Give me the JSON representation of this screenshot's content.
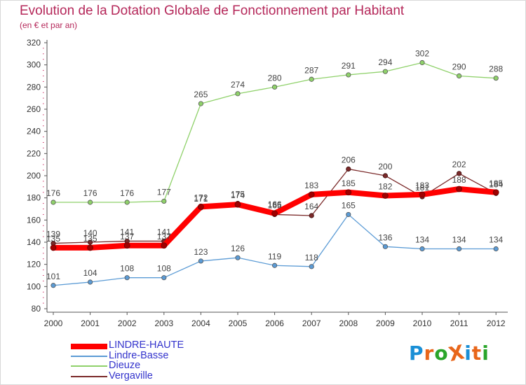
{
  "header": {
    "title": "Evolution de la Dotation Globale de Fonctionnement par Habitant",
    "subtitle": "(en € et par an)"
  },
  "logo": {
    "text": "ProXiti",
    "colors": [
      "#1a8fd6",
      "#e8661a",
      "#2aa52a",
      "#e8661a",
      "#1a8fd6",
      "#e8661a",
      "#2aa52a"
    ]
  },
  "colors": {
    "accent": "#b5285a",
    "legend_text": "#3333cc"
  },
  "chart_data": {
    "type": "line",
    "title": "Evolution de la Dotation Globale de Fonctionnement par Habitant",
    "subtitle": "(en € et par an)",
    "x": [
      "2000",
      "2001",
      "2002",
      "2003",
      "2004",
      "2005",
      "2006",
      "2007",
      "2008",
      "2009",
      "2010",
      "2011",
      "2012"
    ],
    "ylim": [
      80,
      320
    ],
    "yticks": [
      80,
      100,
      120,
      140,
      160,
      180,
      200,
      220,
      240,
      260,
      280,
      300,
      320
    ],
    "grid": false,
    "legend_position": "bottom-left",
    "series": [
      {
        "name": "LINDRE-HAUTE",
        "color": "#ff0000",
        "values": [
          135,
          135,
          137,
          137,
          172,
          174,
          166,
          183,
          185,
          182,
          183,
          188,
          185
        ]
      },
      {
        "name": "Lindre-Basse",
        "color": "#5b9bd5",
        "values": [
          101,
          104,
          108,
          108,
          123,
          126,
          119,
          118,
          165,
          136,
          134,
          134,
          134
        ]
      },
      {
        "name": "Dieuze",
        "color": "#8fd16a",
        "values": [
          176,
          176,
          176,
          177,
          265,
          274,
          280,
          287,
          291,
          294,
          302,
          290,
          288
        ]
      },
      {
        "name": "Vergaville",
        "color": "#7b2a2a",
        "values": [
          139,
          140,
          141,
          141,
          171,
          175,
          165,
          164,
          206,
          200,
          181,
          202,
          184
        ]
      }
    ]
  }
}
